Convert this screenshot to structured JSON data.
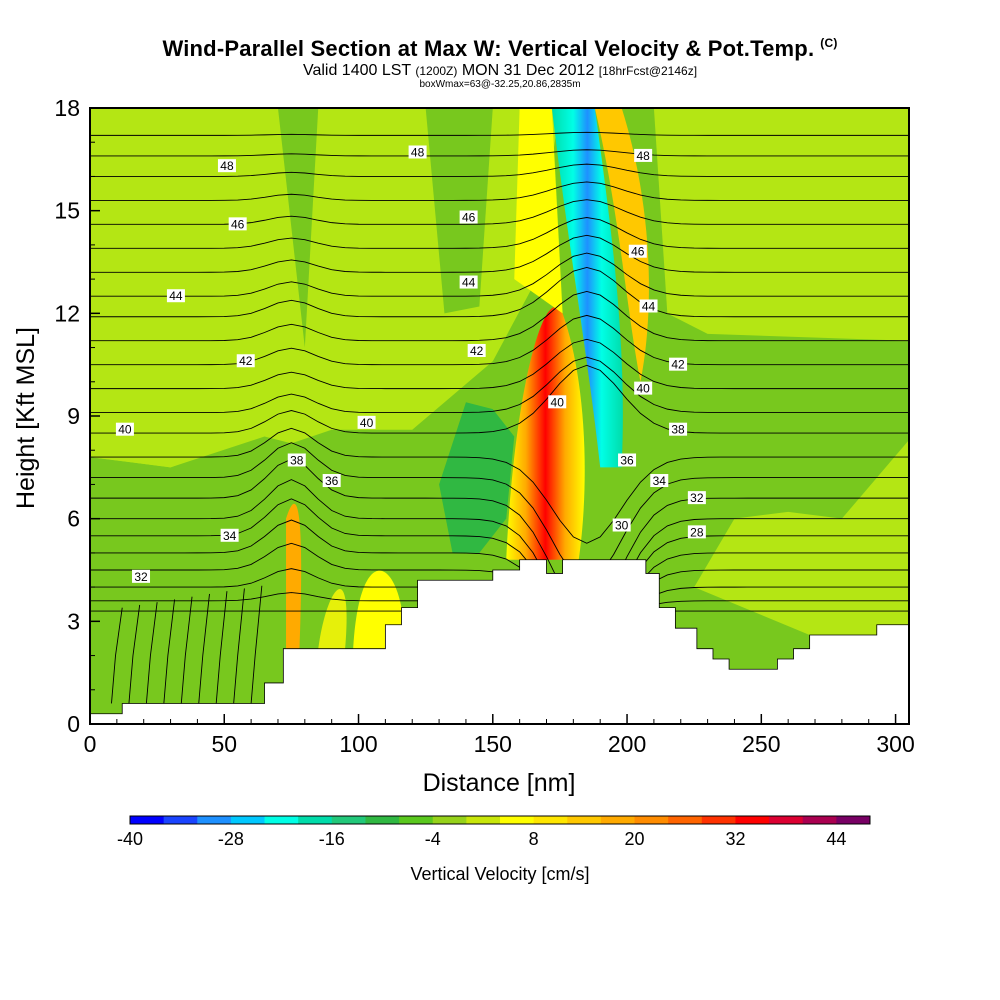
{
  "header": {
    "title": "Wind-Parallel Section at Max W: Vertical Velocity & Pot.Temp.",
    "copyright": "(C)",
    "valid_prefix": "Valid 1400 LST",
    "valid_utc": "(1200Z)",
    "valid_date": "MON 31 Dec 2012",
    "forecast": "[18hrFcst@2146z]",
    "box_info": "boxWmax=63@-32.25,20.86,2835m"
  },
  "chart_data": {
    "type": "heatmap",
    "xlabel": "Distance [nm]",
    "ylabel": "Height [Kft MSL]",
    "xlim": [
      0,
      305
    ],
    "ylim": [
      0,
      18
    ],
    "x_ticks": [
      0,
      50,
      100,
      150,
      200,
      250,
      300
    ],
    "y_ticks": [
      0,
      3,
      6,
      9,
      12,
      15,
      18
    ],
    "colorbar": {
      "title": "Vertical Velocity [cm/s]",
      "tick_labels": [
        -40,
        -28,
        -16,
        -4,
        8,
        20,
        32,
        44
      ],
      "range": [
        -40,
        48
      ],
      "colors": [
        "#0000ff",
        "#1a44ff",
        "#1e90ff",
        "#00c8ff",
        "#00ffe6",
        "#00dcaa",
        "#22c87a",
        "#30b842",
        "#5ac81e",
        "#96d21a",
        "#c8e60a",
        "#ffff00",
        "#ffe600",
        "#ffc800",
        "#ffaa00",
        "#ff8c00",
        "#ff6400",
        "#ff3200",
        "#ff0000",
        "#dc0032",
        "#aa0050",
        "#780064"
      ]
    },
    "terrain": [
      [
        0,
        0.3
      ],
      [
        12,
        0.3
      ],
      [
        12,
        0.6
      ],
      [
        65,
        0.6
      ],
      [
        65,
        1.2
      ],
      [
        72,
        1.2
      ],
      [
        72,
        2.2
      ],
      [
        110,
        2.2
      ],
      [
        110,
        2.9
      ],
      [
        116,
        2.9
      ],
      [
        116,
        3.4
      ],
      [
        122,
        3.4
      ],
      [
        122,
        4.2
      ],
      [
        150,
        4.2
      ],
      [
        150,
        4.5
      ],
      [
        160,
        4.5
      ],
      [
        160,
        4.8
      ],
      [
        170,
        4.8
      ],
      [
        170,
        4.4
      ],
      [
        176,
        4.4
      ],
      [
        176,
        4.8
      ],
      [
        194,
        4.8
      ],
      [
        194,
        4.8
      ],
      [
        200,
        4.8
      ],
      [
        200,
        4.8
      ],
      [
        207,
        4.8
      ],
      [
        207,
        4.4
      ],
      [
        212,
        4.4
      ],
      [
        212,
        3.4
      ],
      [
        218,
        3.4
      ],
      [
        218,
        2.8
      ],
      [
        226,
        2.8
      ],
      [
        226,
        2.2
      ],
      [
        232,
        2.2
      ],
      [
        232,
        1.9
      ],
      [
        238,
        1.9
      ],
      [
        238,
        1.6
      ],
      [
        256,
        1.6
      ],
      [
        256,
        1.9
      ],
      [
        262,
        1.9
      ],
      [
        262,
        2.2
      ],
      [
        268,
        2.2
      ],
      [
        268,
        2.6
      ],
      [
        293,
        2.6
      ],
      [
        293,
        2.9
      ],
      [
        305,
        2.9
      ]
    ],
    "contour_labels": [
      {
        "text": "48",
        "x": 51,
        "y": 16.3
      },
      {
        "text": "48",
        "x": 122,
        "y": 16.7
      },
      {
        "text": "48",
        "x": 206,
        "y": 16.6
      },
      {
        "text": "46",
        "x": 55,
        "y": 14.6
      },
      {
        "text": "46",
        "x": 141,
        "y": 14.8
      },
      {
        "text": "46",
        "x": 204,
        "y": 13.8
      },
      {
        "text": "44",
        "x": 32,
        "y": 12.5
      },
      {
        "text": "44",
        "x": 141,
        "y": 12.9
      },
      {
        "text": "44",
        "x": 208,
        "y": 12.2
      },
      {
        "text": "42",
        "x": 58,
        "y": 10.6
      },
      {
        "text": "42",
        "x": 144,
        "y": 10.9
      },
      {
        "text": "42",
        "x": 219,
        "y": 10.5
      },
      {
        "text": "40",
        "x": 13,
        "y": 8.6
      },
      {
        "text": "40",
        "x": 103,
        "y": 8.8
      },
      {
        "text": "40",
        "x": 174,
        "y": 9.4
      },
      {
        "text": "40",
        "x": 206,
        "y": 9.8
      },
      {
        "text": "38",
        "x": 77,
        "y": 7.7
      },
      {
        "text": "38",
        "x": 219,
        "y": 8.6
      },
      {
        "text": "36",
        "x": 90,
        "y": 7.1
      },
      {
        "text": "36",
        "x": 200,
        "y": 7.7
      },
      {
        "text": "34",
        "x": 52,
        "y": 5.5
      },
      {
        "text": "34",
        "x": 212,
        "y": 7.1
      },
      {
        "text": "32",
        "x": 19,
        "y": 4.3
      },
      {
        "text": "32",
        "x": 226,
        "y": 6.6
      },
      {
        "text": "30",
        "x": 198,
        "y": 5.8
      },
      {
        "text": "28",
        "x": 226,
        "y": 5.6
      }
    ]
  }
}
